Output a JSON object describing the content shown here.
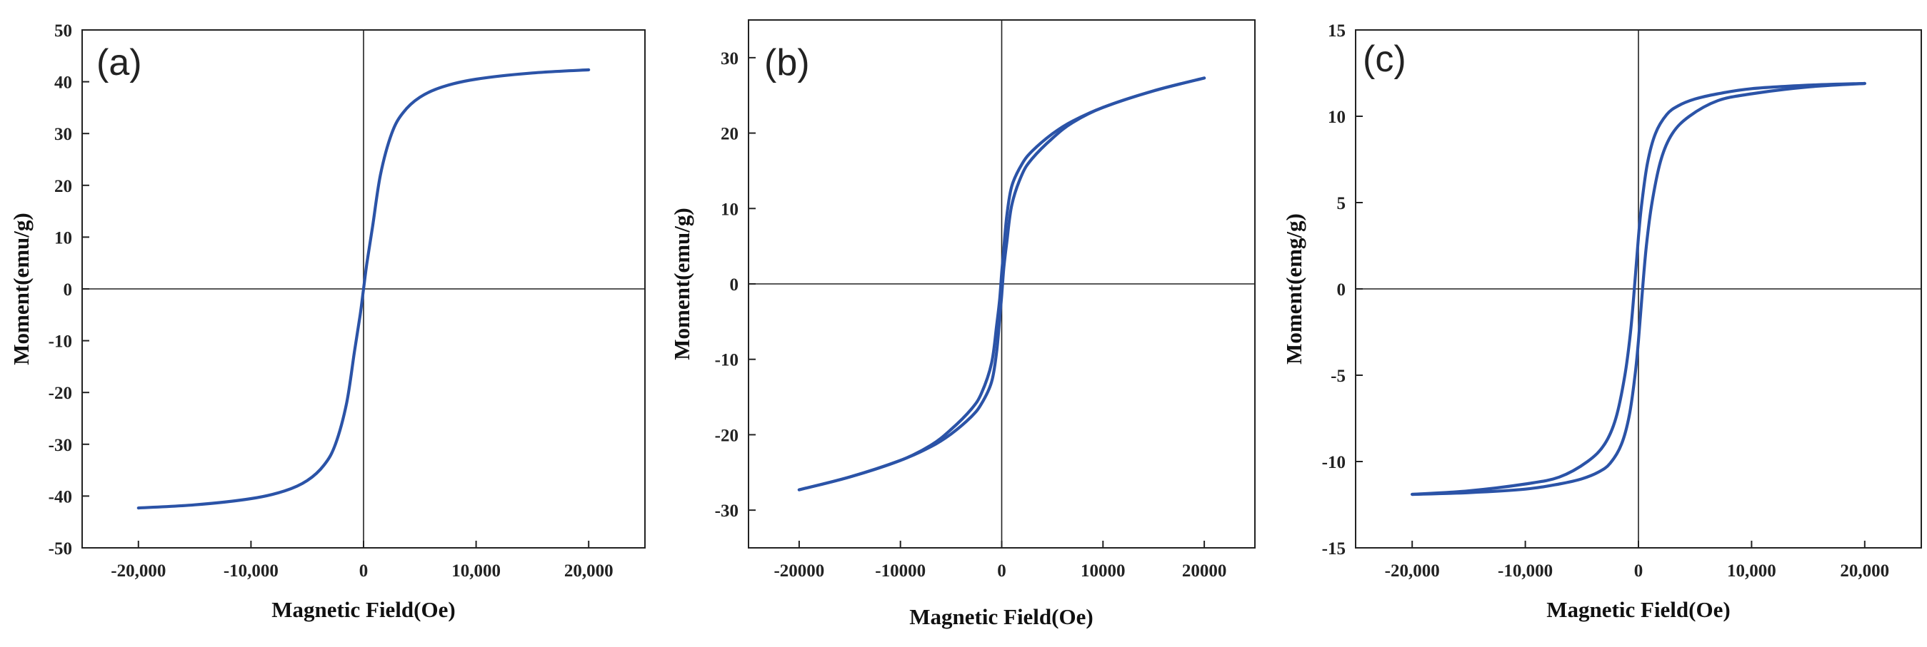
{
  "colors": {
    "series": "#2b53a7",
    "axis": "#222222",
    "background": "#ffffff"
  },
  "chart_data": [
    {
      "type": "line",
      "panel_label": "(a)",
      "xlabel": "Magnetic Field(Oe)",
      "ylabel": "Moment(emu/g)",
      "xlim": [
        -25000,
        25000
      ],
      "ylim": [
        -50,
        50
      ],
      "xticks": [
        {
          "value": -20000,
          "label": "-20,000"
        },
        {
          "value": -10000,
          "label": "-10,000"
        },
        {
          "value": 0,
          "label": "0"
        },
        {
          "value": 10000,
          "label": "10,000"
        },
        {
          "value": 20000,
          "label": "20,000"
        }
      ],
      "yticks": [
        {
          "value": -50,
          "label": "-50"
        },
        {
          "value": -40,
          "label": "-40"
        },
        {
          "value": -30,
          "label": "-30"
        },
        {
          "value": -20,
          "label": "-20"
        },
        {
          "value": -10,
          "label": "-10"
        },
        {
          "value": 0,
          "label": "0"
        },
        {
          "value": 10,
          "label": "10"
        },
        {
          "value": 20,
          "label": "20"
        },
        {
          "value": 30,
          "label": "30"
        },
        {
          "value": 40,
          "label": "40"
        },
        {
          "value": 50,
          "label": "50"
        }
      ],
      "grid": false,
      "zero_lines": true,
      "series": [
        {
          "values": [
            [
              -20000,
              -42.3
            ],
            [
              -15000,
              -41.7
            ],
            [
              -10000,
              -40.5
            ],
            [
              -7000,
              -39.0
            ],
            [
              -5000,
              -37.0
            ],
            [
              -3500,
              -34.0
            ],
            [
              -2500,
              -30.0
            ],
            [
              -1500,
              -22.0
            ],
            [
              -800,
              -12.0
            ],
            [
              -300,
              -5.0
            ],
            [
              0,
              0
            ],
            [
              300,
              5.0
            ],
            [
              800,
              12.0
            ],
            [
              1500,
              22.0
            ],
            [
              2500,
              30.0
            ],
            [
              3500,
              34.0
            ],
            [
              5000,
              37.0
            ],
            [
              7000,
              39.0
            ],
            [
              10000,
              40.5
            ],
            [
              15000,
              41.7
            ],
            [
              20000,
              42.3
            ]
          ]
        }
      ]
    },
    {
      "type": "line",
      "panel_label": "(b)",
      "xlabel": "Magnetic Field(Oe)",
      "ylabel": "Moment(emu/g)",
      "xlim": [
        -25000,
        25000
      ],
      "ylim": [
        -35,
        35
      ],
      "xticks": [
        {
          "value": -20000,
          "label": "-20000"
        },
        {
          "value": -10000,
          "label": "-10000"
        },
        {
          "value": 0,
          "label": "0"
        },
        {
          "value": 10000,
          "label": "10000"
        },
        {
          "value": 20000,
          "label": "20000"
        }
      ],
      "yticks": [
        {
          "value": -30,
          "label": "-30"
        },
        {
          "value": -20,
          "label": "-20"
        },
        {
          "value": -10,
          "label": "-10"
        },
        {
          "value": 0,
          "label": "0"
        },
        {
          "value": 10,
          "label": "10"
        },
        {
          "value": 20,
          "label": "20"
        },
        {
          "value": 30,
          "label": "30"
        }
      ],
      "grid": false,
      "zero_lines": true,
      "series": [
        {
          "values": [
            [
              20000,
              27.3
            ],
            [
              15000,
              25.6
            ],
            [
              10000,
              23.4
            ],
            [
              7000,
              21.6
            ],
            [
              5000,
              19.9
            ],
            [
              3000,
              17.6
            ],
            [
              2000,
              15.9
            ],
            [
              1000,
              13.0
            ],
            [
              500,
              9.0
            ],
            [
              200,
              4.5
            ],
            [
              0,
              1.5
            ],
            [
              -200,
              -2.0
            ],
            [
              -500,
              -5.5
            ],
            [
              -1000,
              -10.5
            ],
            [
              -2000,
              -14.5
            ],
            [
              -3000,
              -16.6
            ],
            [
              -5000,
              -19.3
            ],
            [
              -7000,
              -21.4
            ],
            [
              -10000,
              -23.4
            ],
            [
              -15000,
              -25.6
            ],
            [
              -20000,
              -27.3
            ]
          ]
        },
        {
          "values": [
            [
              -20000,
              -27.3
            ],
            [
              -15000,
              -25.6
            ],
            [
              -10000,
              -23.4
            ],
            [
              -7000,
              -21.6
            ],
            [
              -5000,
              -19.9
            ],
            [
              -3000,
              -17.6
            ],
            [
              -2000,
              -15.9
            ],
            [
              -1000,
              -13.0
            ],
            [
              -500,
              -9.0
            ],
            [
              -200,
              -4.5
            ],
            [
              0,
              -1.5
            ],
            [
              200,
              2.0
            ],
            [
              500,
              5.5
            ],
            [
              1000,
              10.5
            ],
            [
              2000,
              14.5
            ],
            [
              3000,
              16.6
            ],
            [
              5000,
              19.3
            ],
            [
              7000,
              21.4
            ],
            [
              10000,
              23.4
            ],
            [
              15000,
              25.6
            ],
            [
              20000,
              27.3
            ]
          ]
        }
      ]
    },
    {
      "type": "line",
      "panel_label": "(c)",
      "xlabel": "Magnetic Field(Oe)",
      "ylabel": "Moment(emg/g)",
      "xlim": [
        -25000,
        25000
      ],
      "ylim": [
        -15,
        15
      ],
      "xticks": [
        {
          "value": -20000,
          "label": "-20,000"
        },
        {
          "value": -10000,
          "label": "-10,000"
        },
        {
          "value": 0,
          "label": "0"
        },
        {
          "value": 10000,
          "label": "10,000"
        },
        {
          "value": 20000,
          "label": "20,000"
        }
      ],
      "yticks": [
        {
          "value": -15,
          "label": "-15"
        },
        {
          "value": -10,
          "label": "-10"
        },
        {
          "value": -5,
          "label": "-5"
        },
        {
          "value": 0,
          "label": "0"
        },
        {
          "value": 5,
          "label": "5"
        },
        {
          "value": 10,
          "label": "10"
        },
        {
          "value": 15,
          "label": "15"
        }
      ],
      "grid": false,
      "zero_lines": true,
      "series": [
        {
          "values": [
            [
              20000,
              11.9
            ],
            [
              15000,
              11.8
            ],
            [
              10000,
              11.6
            ],
            [
              7000,
              11.3
            ],
            [
              5000,
              11.0
            ],
            [
              3500,
              10.6
            ],
            [
              2500,
              10.1
            ],
            [
              1500,
              9.0
            ],
            [
              800,
              7.3
            ],
            [
              300,
              5.0
            ],
            [
              0,
              3.0
            ],
            [
              -300,
              0.5
            ],
            [
              -700,
              -2.5
            ],
            [
              -1200,
              -5.0
            ],
            [
              -2000,
              -7.5
            ],
            [
              -3000,
              -9.0
            ],
            [
              -4500,
              -10.0
            ],
            [
              -7000,
              -10.9
            ],
            [
              -10000,
              -11.3
            ],
            [
              -15000,
              -11.7
            ],
            [
              -20000,
              -11.9
            ]
          ]
        },
        {
          "values": [
            [
              -20000,
              -11.9
            ],
            [
              -15000,
              -11.8
            ],
            [
              -10000,
              -11.6
            ],
            [
              -7000,
              -11.3
            ],
            [
              -5000,
              -11.0
            ],
            [
              -3500,
              -10.6
            ],
            [
              -2500,
              -10.1
            ],
            [
              -1500,
              -9.0
            ],
            [
              -800,
              -7.3
            ],
            [
              -300,
              -5.0
            ],
            [
              0,
              -3.0
            ],
            [
              300,
              -0.5
            ],
            [
              700,
              2.5
            ],
            [
              1200,
              5.0
            ],
            [
              2000,
              7.5
            ],
            [
              3000,
              9.0
            ],
            [
              4500,
              10.0
            ],
            [
              7000,
              10.9
            ],
            [
              10000,
              11.3
            ],
            [
              15000,
              11.7
            ],
            [
              20000,
              11.9
            ]
          ]
        }
      ]
    }
  ]
}
